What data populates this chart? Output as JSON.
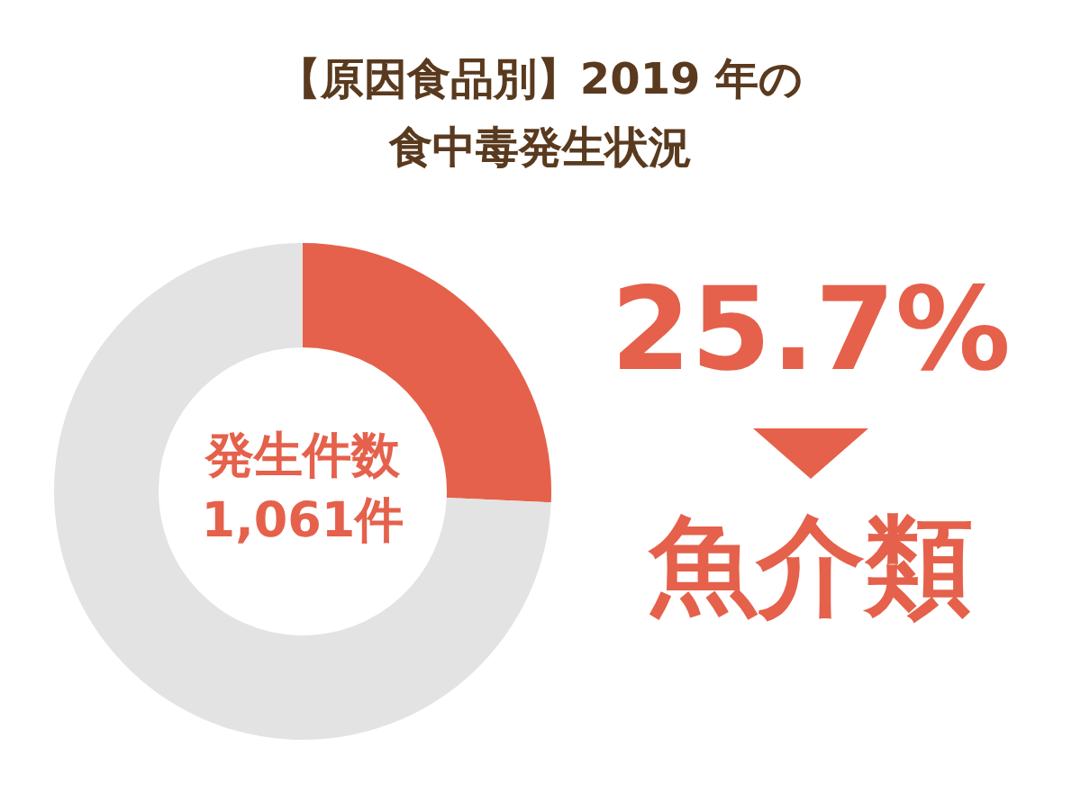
{
  "chart_data": {
    "type": "donut",
    "title": "【原因食品別】2019 年の",
    "subtitle": "食中毒発生状況",
    "categories": [
      "魚介類",
      null
    ],
    "values": [
      25.7,
      74.3
    ],
    "colors": [
      "#e5614b",
      "#e3e3e3"
    ],
    "value_labels": [
      "25.7%",
      null
    ],
    "annotations": [
      "発生件数",
      "1,061件"
    ]
  }
}
